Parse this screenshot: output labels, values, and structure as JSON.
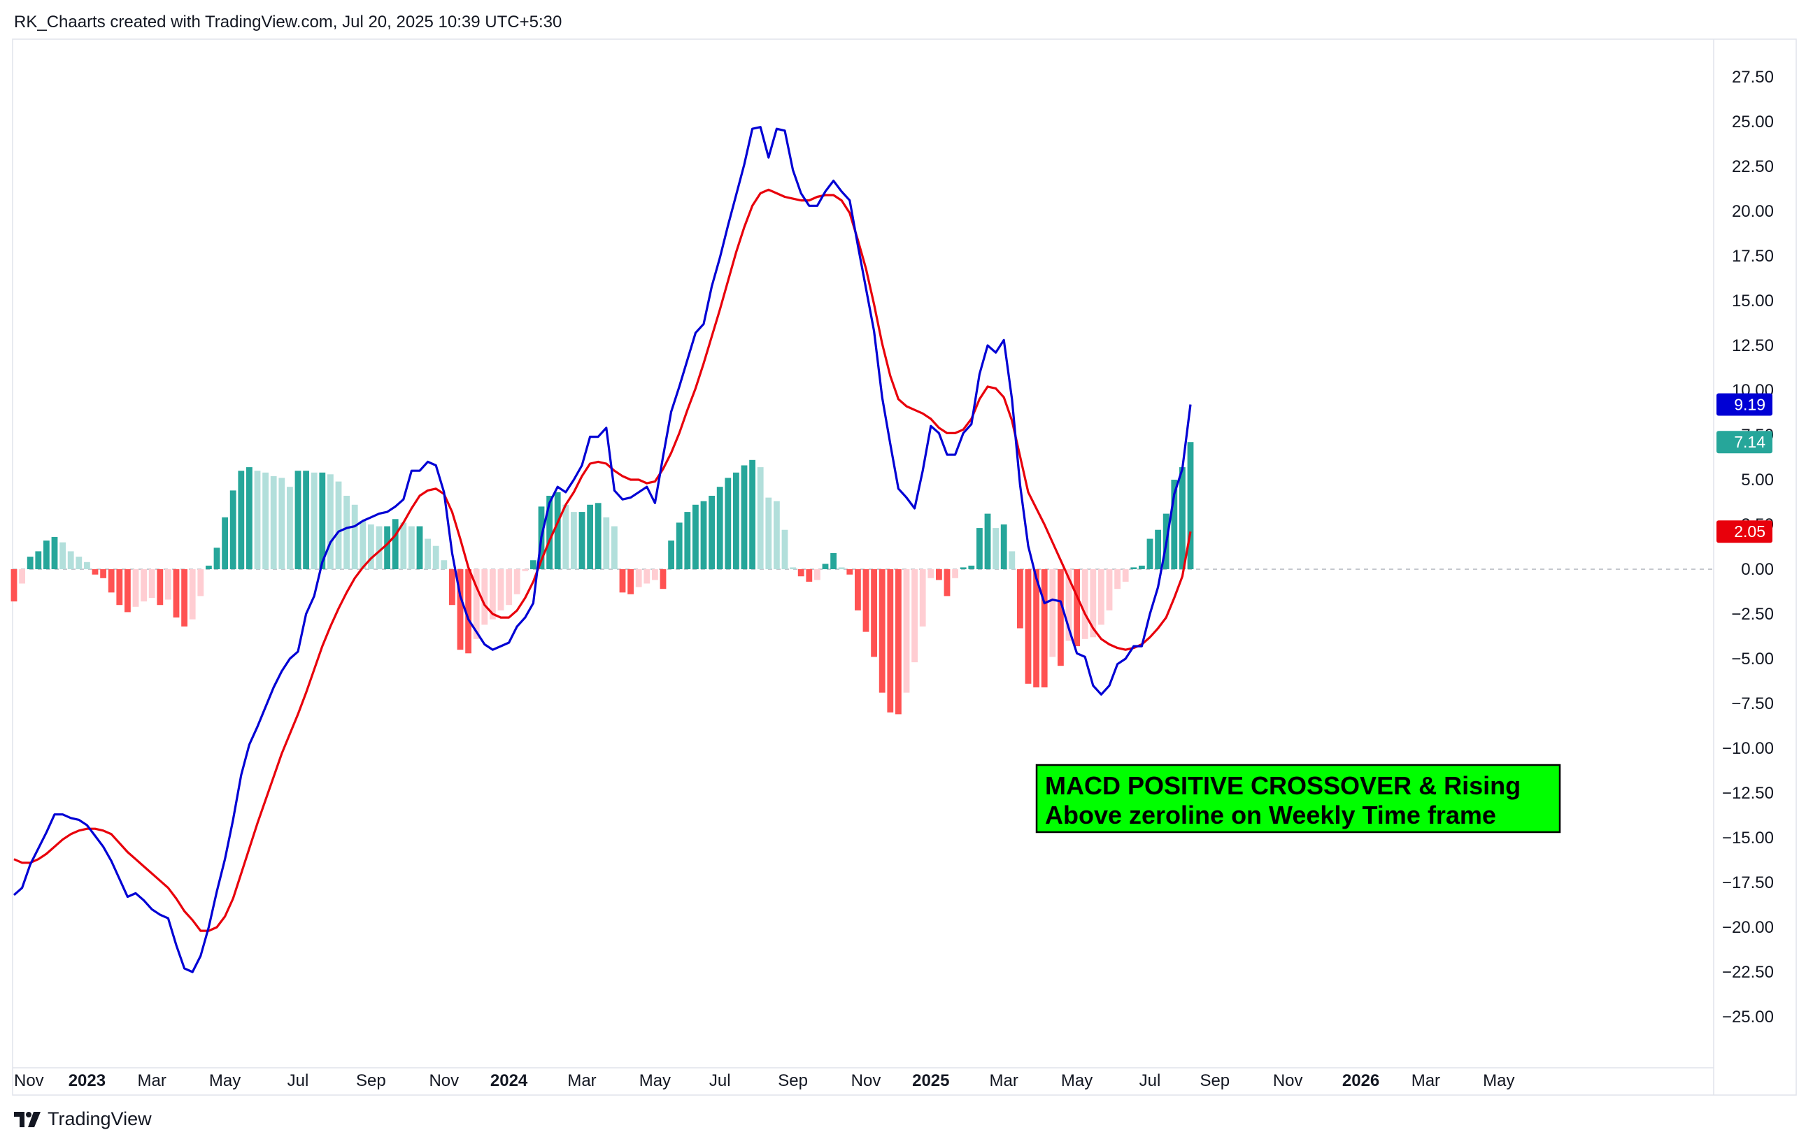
{
  "header": {
    "text": "RK_Chaarts created with TradingView.com, Jul 20, 2025 10:39 UTC+5:30"
  },
  "footer": {
    "brand": "TradingView",
    "logo_icon": "tradingview-logo-icon"
  },
  "annotation": {
    "line1": "MACD POSITIVE CROSSOVER & Rising",
    "line2": "Above zeroline on Weekly Time frame",
    "background": "#00ff00",
    "border": "#000000"
  },
  "chart_data": {
    "type": "line",
    "title": "",
    "xlabel": "",
    "ylabel": "",
    "ylim": [
      -26,
      28.5
    ],
    "grid": false,
    "legend": "none",
    "y_ticks": [
      "27.50",
      "25.00",
      "22.50",
      "20.00",
      "17.50",
      "15.00",
      "12.50",
      "10.00",
      "7.50",
      "5.00",
      "2.50",
      "0.00",
      "−2.50",
      "−5.00",
      "−7.50",
      "−10.00",
      "−12.50",
      "−15.00",
      "−17.50",
      "−20.00",
      "−22.50",
      "−25.00"
    ],
    "y_tick_values": [
      27.5,
      25,
      22.5,
      20,
      17.5,
      15,
      12.5,
      10,
      7.5,
      5,
      2.5,
      0,
      -2.5,
      -5,
      -7.5,
      -10,
      -12.5,
      -15,
      -17.5,
      -20,
      -22.5,
      -25
    ],
    "x_ticks": [
      {
        "label": "Nov",
        "week": 0,
        "bold": false
      },
      {
        "label": "2023",
        "week": 9,
        "bold": true
      },
      {
        "label": "Mar",
        "week": 17,
        "bold": false
      },
      {
        "label": "May",
        "week": 26,
        "bold": false
      },
      {
        "label": "Jul",
        "week": 35,
        "bold": false
      },
      {
        "label": "Sep",
        "week": 44,
        "bold": false
      },
      {
        "label": "Nov",
        "week": 53,
        "bold": false
      },
      {
        "label": "2024",
        "week": 61,
        "bold": true
      },
      {
        "label": "Mar",
        "week": 70,
        "bold": false
      },
      {
        "label": "May",
        "week": 79,
        "bold": false
      },
      {
        "label": "Jul",
        "week": 87,
        "bold": false
      },
      {
        "label": "Sep",
        "week": 96,
        "bold": false
      },
      {
        "label": "Nov",
        "week": 105,
        "bold": false
      },
      {
        "label": "2025",
        "week": 113,
        "bold": true
      },
      {
        "label": "Mar",
        "week": 122,
        "bold": false
      },
      {
        "label": "May",
        "week": 131,
        "bold": false
      },
      {
        "label": "Jul",
        "week": 140,
        "bold": false
      },
      {
        "label": "Sep",
        "week": 148,
        "bold": false
      },
      {
        "label": "Nov",
        "week": 157,
        "bold": false
      },
      {
        "label": "2026",
        "week": 166,
        "bold": true
      },
      {
        "label": "Mar",
        "week": 174,
        "bold": false
      },
      {
        "label": "May",
        "week": 183,
        "bold": false
      }
    ],
    "last_values": {
      "macd": "9.19",
      "histogram": "7.14",
      "signal": "2.05"
    },
    "colors": {
      "macd": "#0000d4",
      "signal": "#e8000b",
      "hist_pos_strong": "#26a69a",
      "hist_pos_weak": "#b2dfdb",
      "hist_neg_strong": "#ff5252",
      "hist_neg_weak": "#ffcdd2",
      "zero_line": "#b2b5be"
    },
    "series": [
      {
        "key": "macd",
        "values": [
          -18.2,
          -17.8,
          -16.5,
          -15.6,
          -14.7,
          -13.7,
          -13.7,
          -13.9,
          -14.0,
          -14.3,
          -14.9,
          -15.5,
          -16.3,
          -17.3,
          -18.3,
          -18.1,
          -18.5,
          -19.0,
          -19.3,
          -19.5,
          -21.0,
          -22.3,
          -22.5,
          -21.6,
          -20.0,
          -18.0,
          -16.2,
          -14.0,
          -11.5,
          -9.8,
          -8.8,
          -7.7,
          -6.6,
          -5.7,
          -5.0,
          -4.6,
          -2.5,
          -1.5,
          0.4,
          1.5,
          2.1,
          2.3,
          2.4,
          2.7,
          2.9,
          3.1,
          3.2,
          3.5,
          3.9,
          5.5,
          5.5,
          6.0,
          5.8,
          4.3,
          0.9,
          -1.5,
          -2.8,
          -3.5,
          -4.2,
          -4.5,
          -4.3,
          -4.1,
          -3.2,
          -2.7,
          -1.9,
          1.8,
          3.7,
          4.6,
          4.3,
          5.0,
          5.8,
          7.4,
          7.4,
          7.9,
          4.4,
          3.9,
          4.0,
          4.3,
          4.6,
          3.7,
          6.3,
          8.8,
          10.2,
          11.7,
          13.2,
          13.7,
          15.8,
          17.4,
          19.2,
          20.9,
          22.6,
          24.6,
          24.7,
          23.0,
          24.6,
          24.5,
          22.3,
          21.0,
          20.3,
          20.3,
          21.1,
          21.7,
          21.1,
          20.6,
          18.1,
          15.7,
          13.3,
          9.6,
          7.0,
          4.5,
          4.0,
          3.4,
          5.5,
          8.0,
          7.6,
          6.4,
          6.4,
          7.6,
          8.1,
          10.9,
          12.5,
          12.1,
          12.8,
          9.5,
          4.7,
          1.3,
          -0.5,
          -1.9,
          -1.7,
          -1.8,
          -3.3,
          -4.7,
          -4.9,
          -6.5,
          -7.0,
          -6.5,
          -5.3,
          -5.0,
          -4.3,
          -4.3,
          -2.5,
          -1.0,
          1.4,
          4.2,
          5.6,
          9.2
        ]
      },
      {
        "key": "signal",
        "values": [
          -16.2,
          -16.4,
          -16.4,
          -16.2,
          -15.9,
          -15.5,
          -15.1,
          -14.8,
          -14.6,
          -14.5,
          -14.5,
          -14.6,
          -14.8,
          -15.3,
          -15.8,
          -16.2,
          -16.6,
          -17.0,
          -17.4,
          -17.8,
          -18.4,
          -19.1,
          -19.6,
          -20.2,
          -20.2,
          -20.0,
          -19.4,
          -18.4,
          -17.0,
          -15.6,
          -14.2,
          -12.9,
          -11.6,
          -10.3,
          -9.2,
          -8.1,
          -6.9,
          -5.6,
          -4.3,
          -3.2,
          -2.2,
          -1.3,
          -0.5,
          0.1,
          0.6,
          1.0,
          1.4,
          1.9,
          2.6,
          3.4,
          4.1,
          4.4,
          4.5,
          4.2,
          3.2,
          1.7,
          0.1,
          -1.0,
          -2.0,
          -2.5,
          -2.7,
          -2.7,
          -2.3,
          -1.6,
          -0.7,
          0.5,
          1.6,
          2.6,
          3.6,
          4.3,
          5.2,
          5.9,
          6.0,
          5.9,
          5.5,
          5.2,
          5.0,
          5.0,
          4.8,
          4.9,
          5.6,
          6.5,
          7.6,
          8.9,
          10.1,
          11.5,
          13.0,
          14.5,
          16.1,
          17.7,
          19.1,
          20.3,
          21.0,
          21.2,
          21.0,
          20.8,
          20.7,
          20.6,
          20.6,
          20.8,
          20.9,
          20.9,
          20.6,
          19.9,
          18.4,
          16.8,
          14.8,
          12.6,
          10.8,
          9.5,
          9.1,
          8.9,
          8.7,
          8.4,
          7.9,
          7.6,
          7.6,
          7.8,
          8.4,
          9.5,
          10.2,
          10.1,
          9.6,
          8.3,
          6.3,
          4.3,
          3.4,
          2.5,
          1.5,
          0.5,
          -0.5,
          -1.5,
          -2.5,
          -3.3,
          -3.9,
          -4.2,
          -4.4,
          -4.5,
          -4.4,
          -4.2,
          -3.8,
          -3.3,
          -2.7,
          -1.6,
          -0.4,
          2.1
        ]
      },
      {
        "key": "histogram",
        "values": [
          -1.8,
          -0.8,
          0.7,
          1.0,
          1.6,
          1.8,
          1.5,
          1.0,
          0.7,
          0.4,
          -0.3,
          -0.5,
          -1.3,
          -2.0,
          -2.4,
          -2.1,
          -1.8,
          -1.6,
          -2.0,
          -1.7,
          -2.7,
          -3.2,
          -2.8,
          -1.5,
          0.2,
          1.2,
          2.9,
          4.4,
          5.5,
          5.7,
          5.5,
          5.4,
          5.2,
          5.1,
          4.6,
          5.5,
          5.5,
          5.4,
          5.4,
          5.3,
          4.9,
          4.1,
          3.6,
          2.7,
          2.5,
          2.4,
          2.4,
          2.8,
          2.6,
          2.4,
          2.4,
          1.7,
          1.3,
          0.5,
          -2.0,
          -4.5,
          -4.7,
          -3.9,
          -3.1,
          -2.8,
          -2.3,
          -2.0,
          -1.4,
          -0.1,
          0.5,
          3.5,
          4.1,
          4.3,
          3.6,
          3.2,
          3.2,
          3.6,
          3.7,
          2.9,
          2.4,
          -1.3,
          -1.4,
          -1.0,
          -0.8,
          -0.6,
          -1.1,
          1.6,
          2.6,
          3.2,
          3.6,
          3.8,
          4.1,
          4.6,
          5.1,
          5.4,
          5.8,
          6.1,
          5.7,
          4.0,
          3.8,
          2.2,
          0.1,
          -0.4,
          -0.7,
          -0.6,
          0.3,
          0.9,
          0.1,
          -0.3,
          -2.3,
          -3.5,
          -4.9,
          -6.9,
          -8.0,
          -8.1,
          -6.9,
          -5.2,
          -3.2,
          -0.5,
          -0.6,
          -1.5,
          -0.5,
          0.1,
          0.2,
          2.3,
          3.1,
          2.3,
          2.5,
          1.0,
          -3.3,
          -6.4,
          -6.6,
          -6.6,
          -4.9,
          -5.4,
          -4.0,
          -4.3,
          -3.9,
          -3.8,
          -3.1,
          -2.3,
          -1.1,
          -0.7,
          0.1,
          0.2,
          1.7,
          2.2,
          3.1,
          5.0,
          5.7,
          7.1
        ]
      }
    ]
  }
}
